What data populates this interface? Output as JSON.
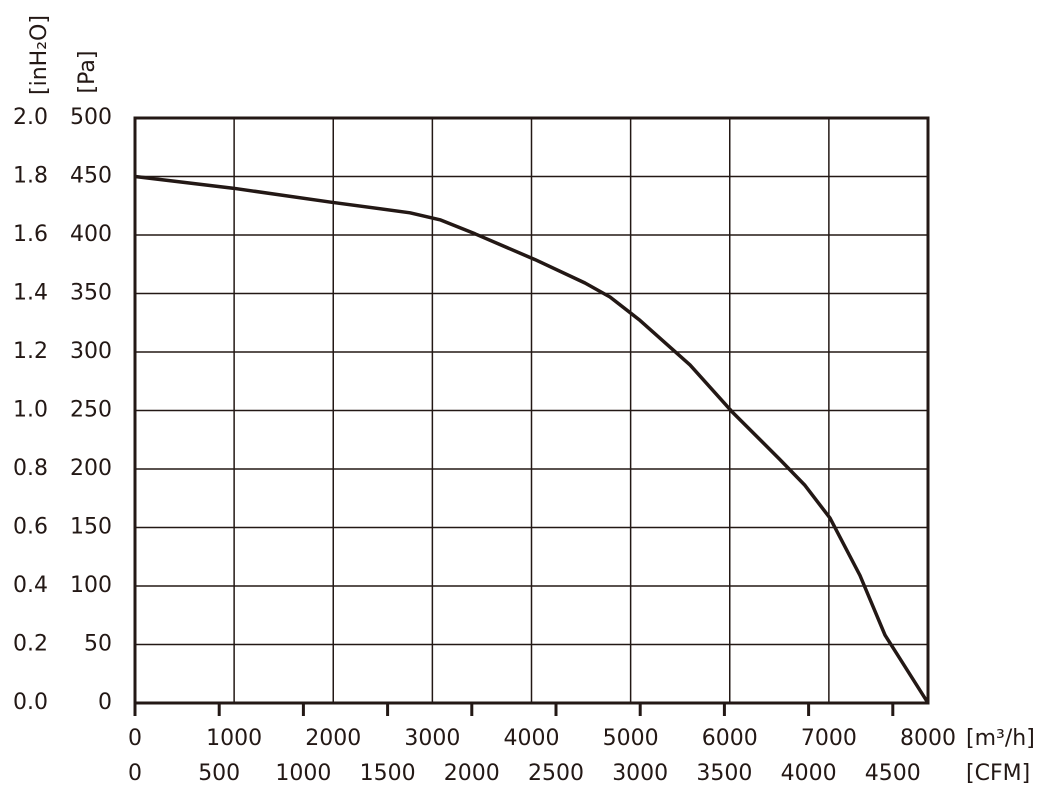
{
  "chart_data": {
    "type": "line",
    "x": [
      0,
      989,
      1977,
      2774,
      3077,
      3430,
      4035,
      4540,
      4792,
      5095,
      5599,
      6023,
      6507,
      6759,
      7011,
      7314,
      7566,
      8000
    ],
    "series": [
      {
        "name": "Pa",
        "color": "#231815",
        "values": [
          450,
          440,
          428,
          419,
          413,
          401,
          379,
          359,
          347,
          327,
          289,
          249,
          208,
          186,
          158,
          109,
          58,
          0
        ]
      }
    ],
    "xlabel": "[m³/h]",
    "x2label": "[CFM]",
    "ylabel": "[Pa]",
    "y2label": "[inH₂O]",
    "xlim": [
      0,
      8000
    ],
    "xticks": [
      0,
      1000,
      2000,
      3000,
      4000,
      5000,
      6000,
      7000,
      8000
    ],
    "x2lim": [
      0,
      4709
    ],
    "x2ticks": [
      0,
      500,
      1000,
      1500,
      2000,
      2500,
      3000,
      3500,
      4000,
      4500
    ],
    "ylim": [
      0,
      500
    ],
    "yticks": [
      0,
      50,
      100,
      150,
      200,
      250,
      300,
      350,
      400,
      450,
      500
    ],
    "y2lim": [
      0,
      2
    ],
    "y2ticks": [
      {
        "value": 0,
        "label": "0.0"
      },
      0.2,
      0.4,
      0.6,
      0.8,
      {
        "value": 1,
        "label": "1.0"
      },
      1.2,
      1.4,
      1.6,
      1.8,
      {
        "value": 2,
        "label": "2.0"
      }
    ],
    "grid": true
  }
}
